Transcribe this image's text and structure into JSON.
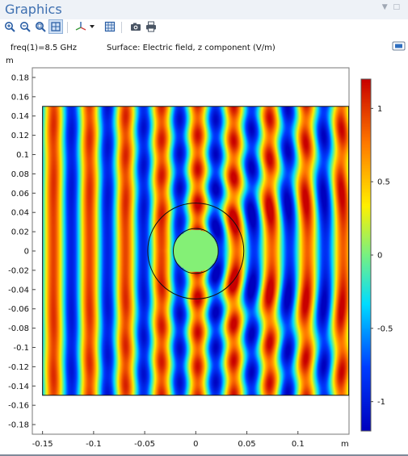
{
  "panel": {
    "title": "Graphics"
  },
  "toolbar": {
    "buttons": [
      {
        "name": "zoom-in-button",
        "icon": "zoom-in-icon"
      },
      {
        "name": "zoom-out-button",
        "icon": "zoom-out-icon"
      },
      {
        "name": "zoom-box-button",
        "icon": "zoom-box-icon"
      },
      {
        "name": "zoom-extents-button",
        "icon": "zoom-extents-icon"
      },
      {
        "name": "axis-orientation-button",
        "icon": "axis-triad-icon"
      },
      {
        "name": "grid-toggle-button",
        "icon": "grid-icon"
      },
      {
        "name": "image-snapshot-button",
        "icon": "camera-icon"
      },
      {
        "name": "print-button",
        "icon": "printer-icon"
      }
    ]
  },
  "plot": {
    "param_label": "freq(1)=8.5 GHz",
    "surface_label": "Surface: Electric field, z component (V/m)",
    "y_unit": "m",
    "x_unit": "m",
    "colormap": "rainbow"
  },
  "chart_data": {
    "type": "heatmap",
    "title": "Surface: Electric field, z component (V/m)",
    "subtitle": "freq(1)=8.5 GHz",
    "x_ticks": [
      -0.15,
      -0.1,
      -0.05,
      0,
      0.05,
      0.1
    ],
    "y_ticks": [
      0.18,
      0.16,
      0.14,
      0.12,
      0.1,
      0.08,
      0.06,
      0.04,
      0.02,
      0,
      -0.02,
      -0.04,
      -0.06,
      -0.08,
      -0.1,
      -0.12,
      -0.14,
      -0.16,
      -0.18
    ],
    "xlim": [
      -0.16,
      0.15
    ],
    "ylim": [
      -0.19,
      0.19
    ],
    "domain": {
      "x": [
        -0.15,
        0.15
      ],
      "y": [
        -0.15,
        0.15
      ]
    },
    "scatterer_radius": 0.022,
    "outer_circle_radius": 0.047,
    "wavelength": 0.0353,
    "colorbar": {
      "min": -1.2,
      "max": 1.2,
      "ticks": [
        1,
        0.5,
        0,
        -0.5,
        -1
      ]
    }
  }
}
